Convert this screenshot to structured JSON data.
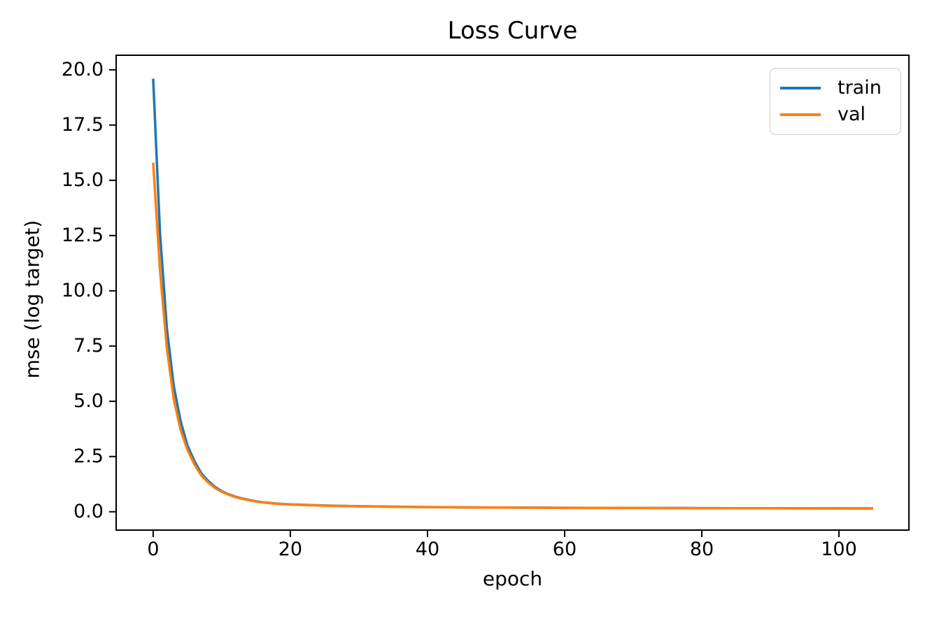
{
  "figure": {
    "background": "#ffffff",
    "axis_color": "#000000",
    "text_color": "#000000",
    "legend_border_color": "#cccccc"
  },
  "chart_data": {
    "type": "line",
    "title": "Loss Curve",
    "xlabel": "epoch",
    "ylabel": "mse (log target)",
    "xlim": [
      -5.4,
      110.2
    ],
    "ylim": [
      -0.83,
      20.66
    ],
    "grid": false,
    "legend_position": "upper right",
    "xticks": {
      "values": [
        0,
        20,
        40,
        60,
        80,
        100
      ],
      "labels": [
        "0",
        "20",
        "40",
        "60",
        "80",
        "100"
      ]
    },
    "yticks": {
      "values": [
        0.0,
        2.5,
        5.0,
        7.5,
        10.0,
        12.5,
        15.0,
        17.5,
        20.0
      ],
      "labels": [
        "0.0",
        "2.5",
        "5.0",
        "7.5",
        "10.0",
        "12.5",
        "15.0",
        "17.5",
        "20.0"
      ]
    },
    "series": [
      {
        "name": "train",
        "color": "#1f77b4",
        "x": [
          0,
          1,
          2,
          3,
          4,
          5,
          6,
          7,
          8,
          9,
          10,
          11,
          12,
          13,
          14,
          15,
          16,
          17,
          18,
          19,
          20,
          25,
          30,
          35,
          40,
          45,
          50,
          55,
          60,
          65,
          70,
          75,
          80,
          85,
          90,
          95,
          100,
          105
        ],
        "y": [
          19.6,
          12.6,
          8.3,
          5.7,
          4.1,
          3.0,
          2.3,
          1.75,
          1.4,
          1.13,
          0.93,
          0.79,
          0.68,
          0.6,
          0.53,
          0.47,
          0.43,
          0.4,
          0.37,
          0.35,
          0.33,
          0.28,
          0.25,
          0.23,
          0.21,
          0.2,
          0.19,
          0.185,
          0.18,
          0.175,
          0.17,
          0.17,
          0.165,
          0.16,
          0.16,
          0.155,
          0.155,
          0.15
        ]
      },
      {
        "name": "val",
        "color": "#ff7f0e",
        "x": [
          0,
          1,
          2,
          3,
          4,
          5,
          6,
          7,
          8,
          9,
          10,
          11,
          12,
          13,
          14,
          15,
          16,
          17,
          18,
          19,
          20,
          25,
          30,
          35,
          40,
          45,
          50,
          55,
          60,
          65,
          70,
          75,
          80,
          85,
          90,
          95,
          100,
          105
        ],
        "y": [
          15.8,
          10.9,
          7.4,
          5.1,
          3.7,
          2.8,
          2.15,
          1.65,
          1.33,
          1.08,
          0.9,
          0.77,
          0.66,
          0.58,
          0.52,
          0.46,
          0.42,
          0.39,
          0.36,
          0.34,
          0.325,
          0.275,
          0.245,
          0.225,
          0.21,
          0.2,
          0.19,
          0.183,
          0.178,
          0.173,
          0.17,
          0.168,
          0.163,
          0.16,
          0.158,
          0.155,
          0.152,
          0.15
        ]
      }
    ]
  }
}
